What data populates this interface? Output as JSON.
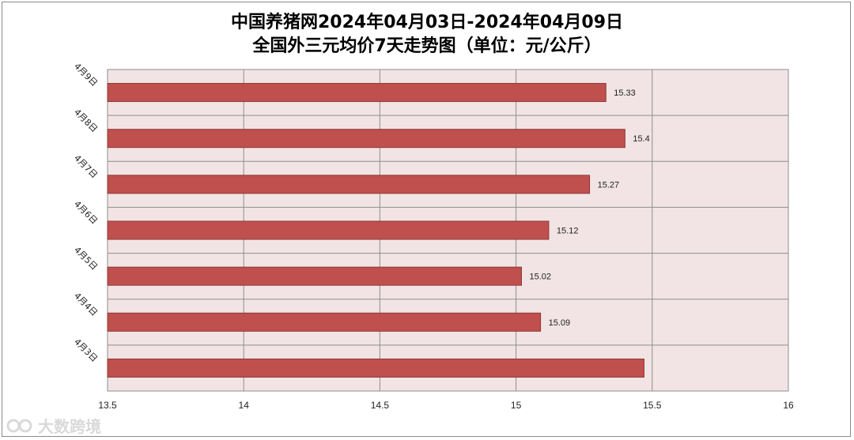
{
  "chart_data": {
    "type": "bar",
    "orientation": "horizontal",
    "title": "中国养猪网2024年04月03日-2024年04月09日",
    "subtitle": "全国外三元均价7天走势图（单位：元/公斤）",
    "categories": [
      "4月9日",
      "4月8日",
      "4月7日",
      "4月6日",
      "4月5日",
      "4月4日",
      "4月3日"
    ],
    "values": [
      15.33,
      15.4,
      15.27,
      15.12,
      15.02,
      15.09,
      15.47
    ],
    "data_labels": [
      "15.33",
      "15.4",
      "15.27",
      "15.12",
      "15.02",
      "15.09",
      ""
    ],
    "xlim": [
      13.5,
      16
    ],
    "x_ticks": [
      "13.5",
      "14",
      "14.5",
      "15",
      "15.5",
      "16"
    ],
    "grid": true,
    "legend": "none",
    "colors": {
      "bar_fill": "#c0504d",
      "bar_stroke": "#8c3836",
      "plot_bg": "#f2e4e4",
      "grid": "#8e8e8e"
    }
  },
  "watermark": {
    "text": "大数跨境",
    "icon": "logo-icon"
  }
}
